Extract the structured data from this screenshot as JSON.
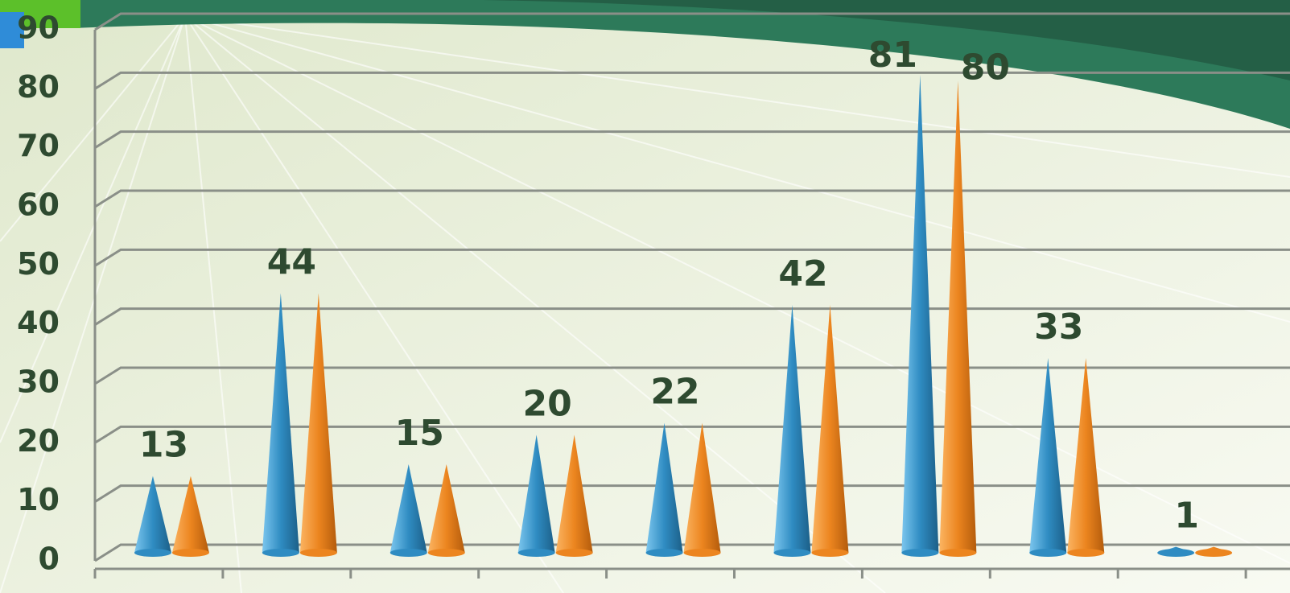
{
  "chart_data": {
    "type": "cone",
    "categories": [
      null,
      null,
      null,
      null,
      null,
      null,
      null,
      null,
      null
    ],
    "series": [
      {
        "color": "#2f8cc2",
        "values": [
          13,
          44,
          15,
          20,
          22,
          42,
          81,
          33,
          1
        ]
      },
      {
        "color": "#ec851f",
        "values": [
          13,
          44,
          15,
          20,
          22,
          42,
          80,
          33,
          1
        ]
      }
    ],
    "ylim": [
      0,
      90
    ],
    "yticks": [
      0,
      10,
      20,
      30,
      40,
      50,
      60,
      70,
      80,
      90
    ],
    "grid": true
  }
}
